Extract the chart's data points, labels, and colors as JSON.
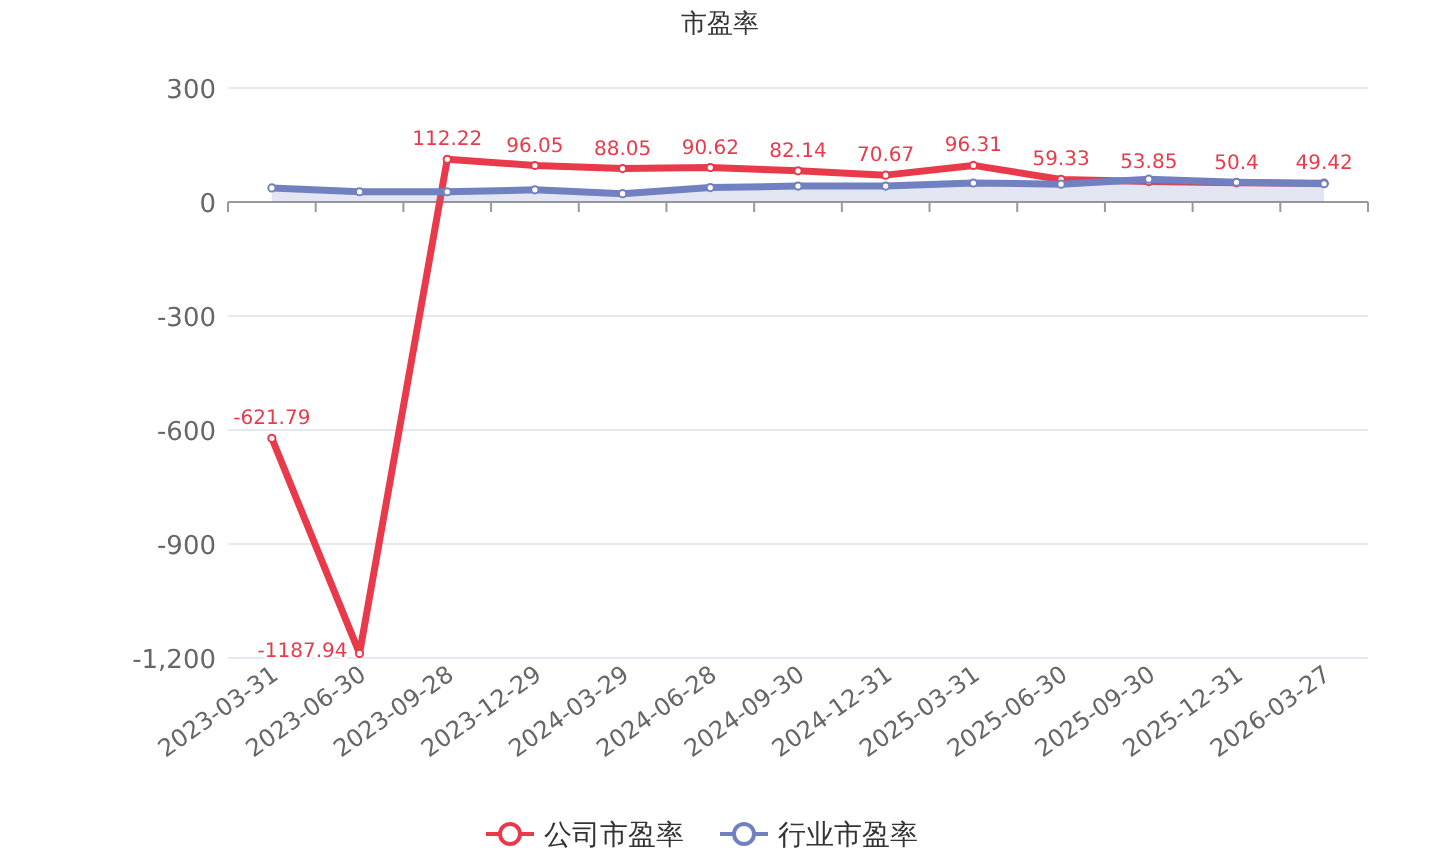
{
  "chart_data": {
    "type": "line",
    "title": "市盈率",
    "categories": [
      "2023-03-31",
      "2023-06-30",
      "2023-09-28",
      "2023-12-29",
      "2024-03-29",
      "2024-06-28",
      "2024-09-30",
      "2024-12-31",
      "2025-03-31",
      "2025-06-30",
      "2025-09-30",
      "2025-12-31",
      "2026-03-27"
    ],
    "series": [
      {
        "name": "公司市盈率",
        "color": "#e83a4b",
        "values": [
          -621.79,
          -1187.94,
          112.22,
          96.05,
          88.05,
          90.62,
          82.14,
          70.67,
          96.31,
          59.33,
          53.85,
          50.4,
          49.42
        ],
        "data_labels": true
      },
      {
        "name": "行业市盈率",
        "color": "#7180c0",
        "type": "area",
        "values": [
          37,
          27,
          27,
          32,
          22,
          38,
          42,
          42,
          50,
          47,
          60,
          52,
          48
        ]
      }
    ],
    "ylim": [
      -1200,
      300
    ],
    "yticks": [
      {
        "value": -1200,
        "label": "-1,200"
      },
      -900,
      -600,
      -300,
      0,
      300
    ],
    "grid": "y",
    "legend": "bottom",
    "marker": "circle"
  }
}
